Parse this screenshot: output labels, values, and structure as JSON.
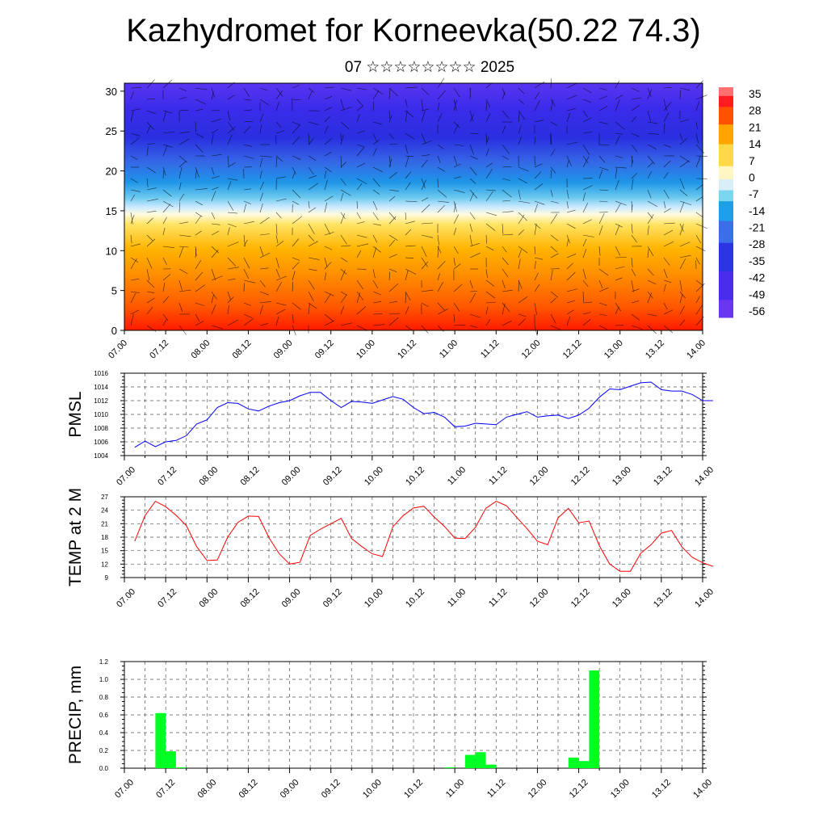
{
  "title": "Kazhydromet for Korneevka(50.22 74.3)",
  "subtitle": "07 ☆☆☆☆☆☆☆☆ 2025",
  "chart_data": [
    {
      "type": "heatmap",
      "name": "temperature-wind-cross-section",
      "y_ticks": [
        "0",
        "5",
        "10",
        "15",
        "20",
        "25",
        "30"
      ],
      "ylim": [
        0,
        31
      ],
      "x_ticks": [
        "07.00",
        "07.12",
        "08.00",
        "08.12",
        "09.00",
        "09.12",
        "10.00",
        "10.12",
        "11.00",
        "11.12",
        "12.00",
        "12.12",
        "13.00",
        "13.12",
        "14.00"
      ],
      "colorbar_labels": [
        "35",
        "28",
        "21",
        "14",
        "7",
        "0",
        "-7",
        "-14",
        "-21",
        "-28",
        "-35",
        "-42",
        "-49",
        "-56"
      ],
      "colorbar_range": [
        -63,
        42
      ],
      "colors": [
        "#ffffff",
        "#ff3f3f",
        "#ff0000",
        "#ff8a00",
        "#ffdd55",
        "#fff8d0",
        "#7ad7f0",
        "#1e9fe8",
        "#3a6fe6",
        "#2b2be0",
        "#5a2ff0"
      ]
    },
    {
      "type": "line",
      "name": "pmsl",
      "ylabel": "PMSL",
      "ylim": [
        1004,
        1016
      ],
      "y_ticks": [
        "1004",
        "1006",
        "1008",
        "1010",
        "1012",
        "1014",
        "1016"
      ],
      "x_ticks": [
        "07.00",
        "07.12",
        "08.00",
        "08.12",
        "09.00",
        "09.12",
        "10.00",
        "10.12",
        "11.00",
        "11.12",
        "12.00",
        "12.12",
        "13.00",
        "13.12",
        "14.00"
      ],
      "x_hours_step": 3,
      "color": "#0000ff",
      "values": [
        1005.2,
        1006.1,
        1005.3,
        1006.0,
        1006.2,
        1006.9,
        1008.6,
        1009.2,
        1011.0,
        1011.7,
        1011.6,
        1010.8,
        1010.5,
        1011.2,
        1011.7,
        1012.0,
        1012.7,
        1013.2,
        1013.2,
        1012.0,
        1011.0,
        1011.9,
        1011.8,
        1011.6,
        1012.1,
        1012.6,
        1012.2,
        1011.0,
        1010.1,
        1010.3,
        1009.6,
        1008.2,
        1008.3,
        1008.7,
        1008.6,
        1008.5,
        1009.6,
        1010.0,
        1010.4,
        1009.6,
        1009.8,
        1009.9,
        1009.4,
        1009.9,
        1010.9,
        1012.5,
        1013.7,
        1013.6,
        1014.1,
        1014.6,
        1014.7,
        1013.6,
        1013.4,
        1013.4,
        1012.9,
        1012.0,
        1012.0
      ]
    },
    {
      "type": "line",
      "name": "temp-2m",
      "ylabel": "TEMP at 2 M",
      "ylim": [
        9,
        27
      ],
      "y_ticks": [
        "9",
        "12",
        "15",
        "18",
        "21",
        "24",
        "27"
      ],
      "x_ticks": [
        "07.00",
        "07.12",
        "08.00",
        "08.12",
        "09.00",
        "09.12",
        "10.00",
        "10.12",
        "11.00",
        "11.12",
        "12.00",
        "12.12",
        "13.00",
        "13.12",
        "14.00"
      ],
      "x_hours_step": 3,
      "color": "#ff0000",
      "values": [
        17.1,
        22.8,
        26.0,
        24.8,
        22.9,
        20.6,
        15.9,
        12.8,
        12.9,
        18.0,
        21.3,
        22.7,
        22.6,
        17.9,
        14.3,
        12.0,
        12.4,
        18.4,
        19.8,
        21.0,
        22.2,
        17.7,
        15.9,
        14.3,
        13.7,
        20.3,
        22.8,
        24.5,
        24.9,
        22.5,
        20.4,
        17.8,
        17.7,
        20.2,
        24.4,
        26.0,
        25.0,
        22.4,
        19.9,
        17.1,
        16.3,
        22.3,
        24.4,
        21.2,
        21.6,
        16.1,
        12.0,
        10.4,
        10.4,
        14.4,
        16.3,
        18.9,
        19.5,
        15.8,
        13.5,
        12.3,
        11.5
      ]
    },
    {
      "type": "bar",
      "name": "precip",
      "ylabel": "PRECIP, mm",
      "ylim": [
        0,
        1.2
      ],
      "y_ticks": [
        "0.0",
        "0.2",
        "0.4",
        "0.6",
        "0.8",
        "1.0",
        "1.2"
      ],
      "x_ticks": [
        "07.00",
        "07.12",
        "08.00",
        "08.12",
        "09.00",
        "09.12",
        "10.00",
        "10.12",
        "11.00",
        "11.12",
        "12.00",
        "12.12",
        "13.00",
        "13.12",
        "14.00"
      ],
      "x_hours_step": 3,
      "color": "#00ff22",
      "bar_start_index": 3,
      "values": [
        0.62,
        0.19,
        0.01,
        0,
        0,
        0,
        0,
        0,
        0,
        0,
        0,
        0,
        0,
        0,
        0,
        0,
        0,
        0,
        0,
        0,
        0,
        0,
        0,
        0,
        0,
        0,
        0,
        0,
        0.01,
        0,
        0.15,
        0.18,
        0.04,
        0,
        0,
        0,
        0,
        0,
        0,
        0,
        0.12,
        0.08,
        1.1
      ]
    }
  ]
}
